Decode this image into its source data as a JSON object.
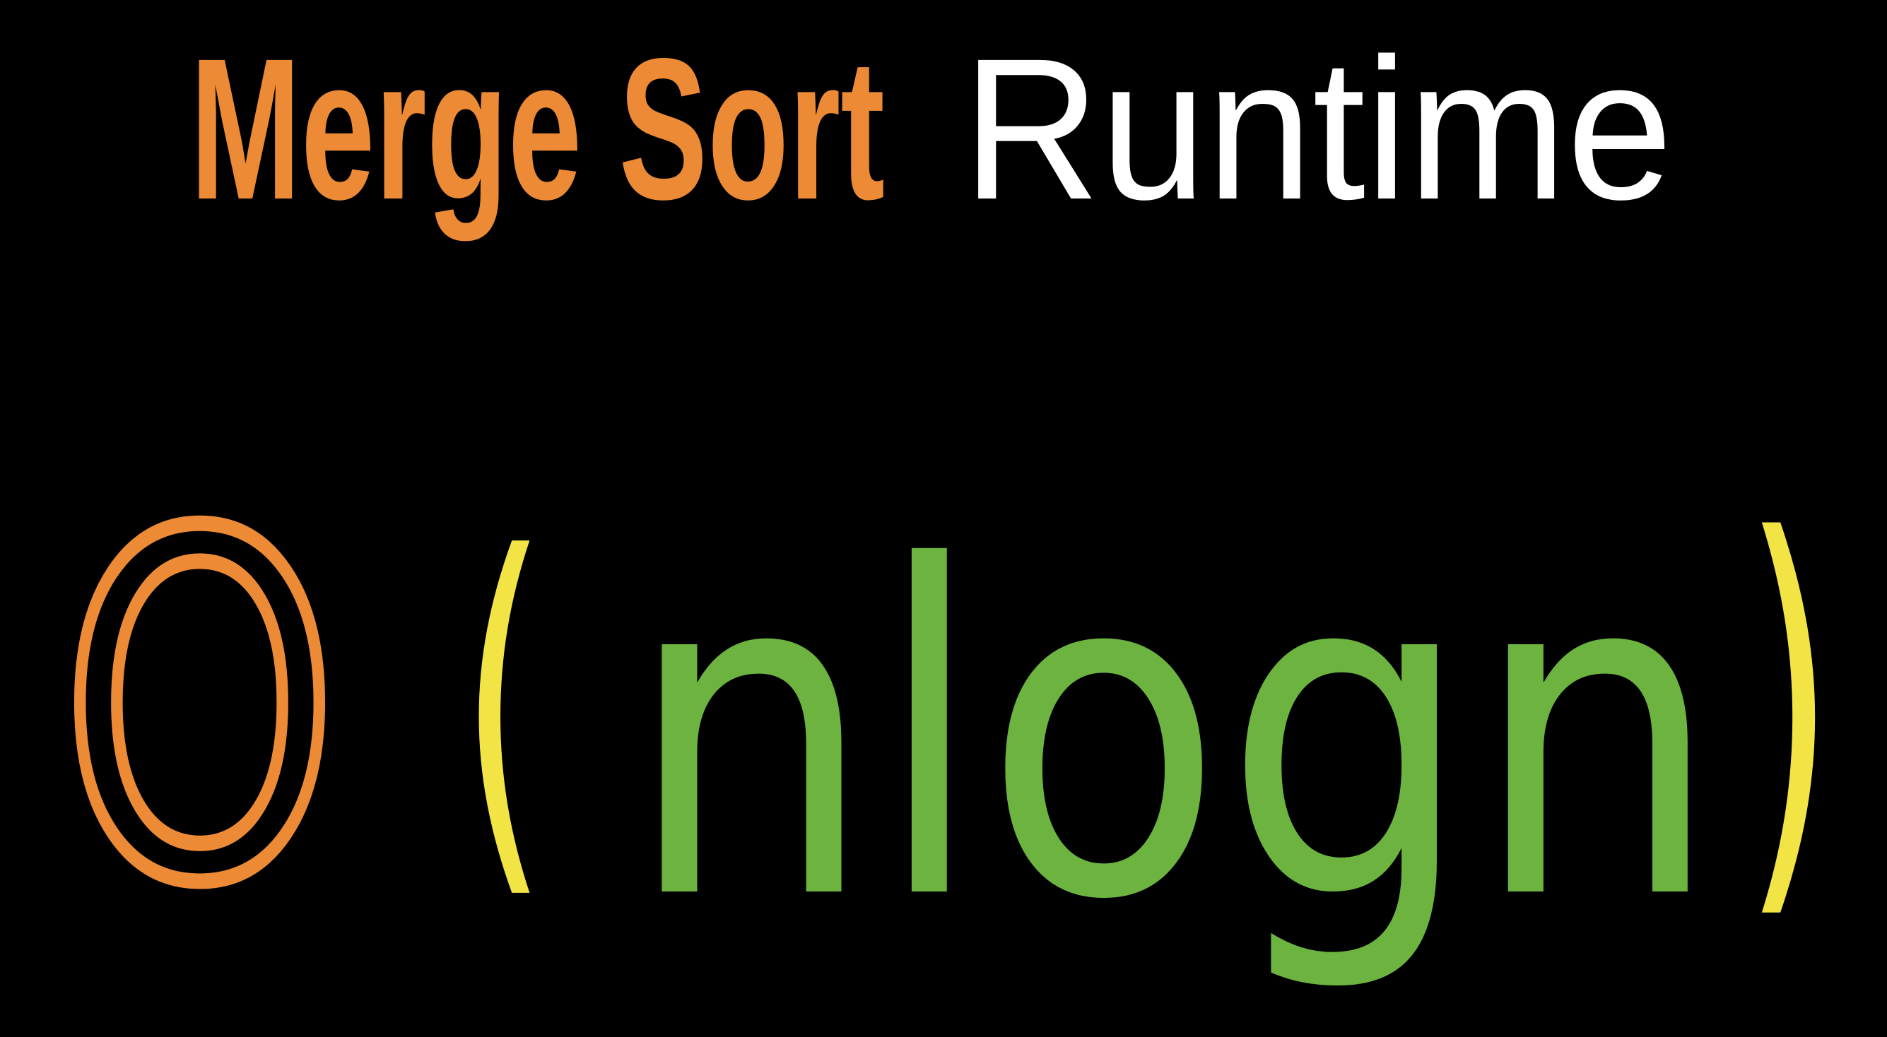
{
  "title": {
    "highlight": "Merge Sort",
    "rest": "Runtime"
  },
  "expression": {
    "big_o": "O",
    "open_paren": "(",
    "argument": "nlogn",
    "close_paren": ")"
  }
}
